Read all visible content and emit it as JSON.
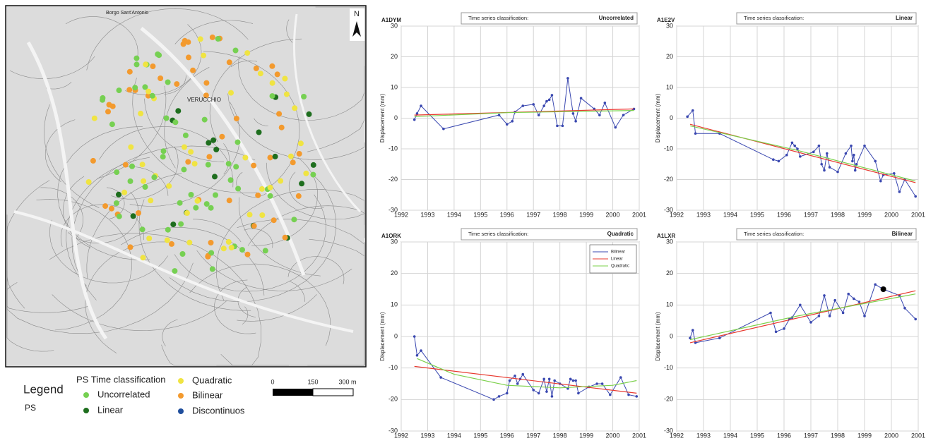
{
  "map": {
    "north": "N",
    "labels": [
      "Borgo Sant'Antonio",
      "VERUCCHIO"
    ],
    "scale": [
      "0",
      "150",
      "300 m"
    ],
    "legend": {
      "title": "Legend",
      "ps": "PS",
      "class_title": "PS Time classification",
      "classes": [
        {
          "name": "Uncorrelated",
          "color": "#76d052"
        },
        {
          "name": "Linear",
          "color": "#1e6e1e"
        },
        {
          "name": "Quadratic",
          "color": "#f0e442"
        },
        {
          "name": "Bilinear",
          "color": "#f39a2e"
        },
        {
          "name": "Discontinuos",
          "color": "#1f4e9c"
        }
      ]
    }
  },
  "chart_data": [
    {
      "type": "line",
      "title": "A1DYM",
      "classification_label": "Time series classification:",
      "classification": "Uncorrelated",
      "y_label": "Displacement (mm)",
      "xlim": [
        1992,
        2001
      ],
      "ylim": [
        -30,
        30
      ],
      "xticks": [
        1992,
        1993,
        1994,
        1995,
        1996,
        1997,
        1998,
        1999,
        2000,
        2001
      ],
      "yticks": [
        -30,
        -20,
        -10,
        0,
        10,
        20,
        30
      ],
      "grid": true,
      "series": [
        {
          "color": "#3a48b0",
          "marker": true,
          "x": [
            1992.5,
            1992.6,
            1992.75,
            1993.6,
            1995.7,
            1996,
            1996.2,
            1996.3,
            1996.6,
            1997,
            1997.2,
            1997.4,
            1997.5,
            1997.6,
            1997.7,
            1997.9,
            1998.1,
            1998.3,
            1998.5,
            1998.6,
            1998.8,
            1999.3,
            1999.5,
            1999.7,
            2000.1,
            2000.4,
            2000.8
          ],
          "values": [
            -0.5,
            1.5,
            4,
            -3.5,
            1,
            -2,
            -1,
            2,
            4,
            4.5,
            1,
            4,
            5.5,
            6,
            7.5,
            -2.5,
            -2.5,
            13,
            1.5,
            -1,
            6.5,
            3,
            1,
            5,
            -3,
            1,
            3
          ]
        },
        {
          "color": "#e8392f",
          "marker": false,
          "x": [
            1992.5,
            2000.8
          ],
          "values": [
            1,
            3
          ]
        },
        {
          "color": "#7bd04a",
          "marker": false,
          "x": [
            1992.5,
            1996,
            2000.8
          ],
          "values": [
            0.5,
            1.8,
            2.5
          ]
        }
      ]
    },
    {
      "type": "line",
      "title": "A1E2V",
      "classification_label": "Time series classification:",
      "classification": "Linear",
      "y_label": "Displacement (mm)",
      "xlim": [
        1992,
        2001
      ],
      "ylim": [
        -30,
        30
      ],
      "xticks": [
        1992,
        1993,
        1994,
        1995,
        1996,
        1997,
        1998,
        1999,
        2000,
        2001
      ],
      "yticks": [
        -30,
        -20,
        -10,
        0,
        10,
        20,
        30
      ],
      "grid": true,
      "series": [
        {
          "color": "#3a48b0",
          "marker": true,
          "x": [
            1992.4,
            1992.6,
            1992.7,
            1993.6,
            1995.6,
            1995.8,
            1996.1,
            1996.3,
            1996.4,
            1996.5,
            1996.6,
            1997.1,
            1997.3,
            1997.4,
            1997.5,
            1997.6,
            1997.7,
            1998,
            1998.3,
            1998.5,
            1998.55,
            1998.6,
            1998.65,
            1998.7,
            1999,
            1999.4,
            1999.6,
            1999.7,
            2000.1,
            2000.3,
            2000.5,
            2000.9
          ],
          "values": [
            0.5,
            2.5,
            -5,
            -5,
            -13.5,
            -14,
            -12,
            -8,
            -9,
            -10,
            -12.5,
            -11,
            -9,
            -15,
            -17,
            -11.5,
            -16,
            -17.5,
            -11.5,
            -9,
            -14,
            -12,
            -17,
            -15,
            -9,
            -14,
            -20.5,
            -18.5,
            -18,
            -24,
            -20,
            -25.5
          ]
        },
        {
          "color": "#e8392f",
          "marker": false,
          "x": [
            1992.5,
            2000.9
          ],
          "values": [
            -2,
            -21
          ]
        },
        {
          "color": "#7bd04a",
          "marker": false,
          "x": [
            1992.5,
            1996.5,
            2000.9
          ],
          "values": [
            -2.5,
            -10.5,
            -20.5
          ]
        }
      ]
    },
    {
      "type": "line",
      "title": "A1ORK",
      "classification_label": "Time series classification:",
      "classification": "Quadratic",
      "y_label": "Displacement (mm)",
      "xlim": [
        1992,
        2001
      ],
      "ylim": [
        -30,
        30
      ],
      "xticks": [
        1992,
        1993,
        1994,
        1995,
        1996,
        1997,
        1998,
        1999,
        2000,
        2001
      ],
      "yticks": [
        -30,
        -20,
        -10,
        0,
        10,
        20,
        30
      ],
      "grid": true,
      "legend": "upper right",
      "series": [
        {
          "name": "Bilinear",
          "color": "#3a48b0",
          "marker": true,
          "x": [
            1992.5,
            1992.6,
            1992.75,
            1993.5,
            1995.5,
            1995.7,
            1996,
            1996.1,
            1996.3,
            1996.4,
            1996.5,
            1996.6,
            1997,
            1997.2,
            1997.4,
            1997.5,
            1997.6,
            1997.7,
            1997.8,
            1998,
            1998.3,
            1998.4,
            1998.5,
            1998.6,
            1998.7,
            1999.1,
            1999.4,
            1999.6,
            1999.9,
            2000.3,
            2000.6,
            2000.9
          ],
          "values": [
            0,
            -6,
            -4.5,
            -13,
            -20,
            -19,
            -18,
            -14,
            -12.5,
            -15,
            -13.5,
            -12,
            -17,
            -18,
            -13.5,
            -17.5,
            -13.5,
            -19,
            -14,
            -15,
            -16.5,
            -13.5,
            -14,
            -14,
            -18,
            -16,
            -15,
            -15,
            -18.5,
            -13,
            -18.5,
            -19
          ]
        },
        {
          "name": "Linear",
          "color": "#e8392f",
          "marker": false,
          "x": [
            1992.5,
            2000.9
          ],
          "values": [
            -9.5,
            -18
          ]
        },
        {
          "name": "Quadratic",
          "color": "#7bd04a",
          "marker": false,
          "x": [
            1992.6,
            1994,
            1996,
            1998,
            2000,
            2000.9
          ],
          "values": [
            -7,
            -12,
            -15.5,
            -16.3,
            -15.5,
            -14
          ]
        }
      ]
    },
    {
      "type": "line",
      "title": "A1LXR",
      "classification_label": "Time series classification:",
      "classification": "Bilinear",
      "y_label": "Displacement (mm)",
      "xlim": [
        1992,
        2001
      ],
      "ylim": [
        -30,
        30
      ],
      "xticks": [
        1992,
        1993,
        1994,
        1995,
        1996,
        1997,
        1998,
        1999,
        2000,
        2001
      ],
      "yticks": [
        -30,
        -20,
        -10,
        0,
        10,
        20,
        30
      ],
      "grid": true,
      "breakpoint": {
        "x": 1999.7,
        "y": 15,
        "color": "#000000"
      },
      "series": [
        {
          "color": "#3a48b0",
          "marker": true,
          "x": [
            1992.5,
            1992.6,
            1992.7,
            1993.6,
            1995.5,
            1995.7,
            1996,
            1996.2,
            1996.3,
            1996.6,
            1997,
            1997.3,
            1997.5,
            1997.7,
            1997.9,
            1998.2,
            1998.4,
            1998.6,
            1998.8,
            1999,
            1999.4,
            1999.7,
            2000.3,
            2000.5,
            2000.9
          ],
          "values": [
            -0.5,
            2,
            -2,
            -0.5,
            7.5,
            1.5,
            2.5,
            5.5,
            6,
            10,
            4.5,
            6.5,
            13,
            6.5,
            11.5,
            7.5,
            13.5,
            12,
            11,
            6.5,
            16.5,
            15,
            13,
            9,
            5.5
          ]
        },
        {
          "color": "#e8392f",
          "marker": false,
          "x": [
            1992.5,
            2000.9
          ],
          "values": [
            -2,
            14.5
          ]
        },
        {
          "color": "#7bd04a",
          "marker": false,
          "x": [
            1992.5,
            1996.5,
            2000.9
          ],
          "values": [
            -1,
            6.5,
            13.5
          ]
        }
      ]
    }
  ]
}
